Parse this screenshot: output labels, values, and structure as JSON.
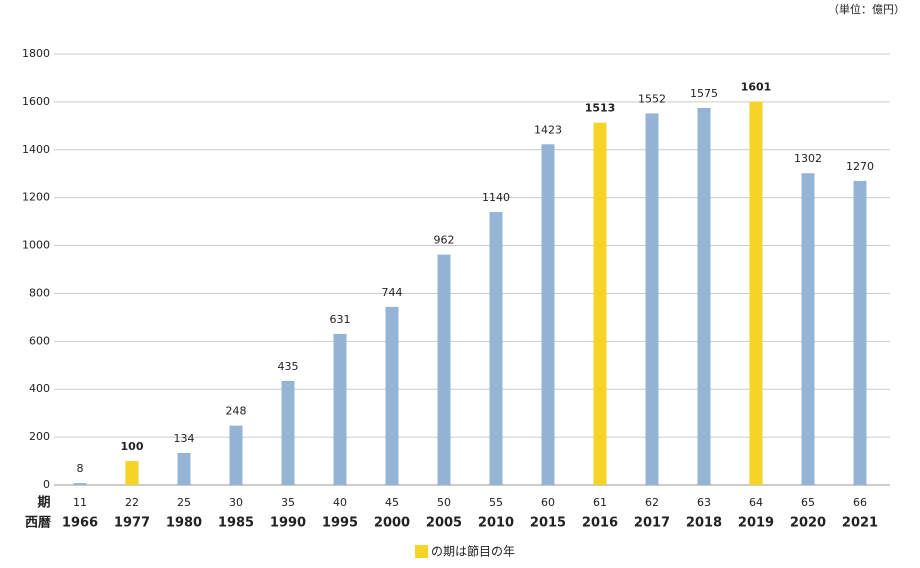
{
  "chart_data": {
    "type": "bar",
    "unit": "（単位：億円）",
    "period_header": "期",
    "year_header": "西暦",
    "periods": [
      "11",
      "22",
      "25",
      "30",
      "35",
      "40",
      "45",
      "50",
      "55",
      "60",
      "61",
      "62",
      "63",
      "64",
      "65",
      "66"
    ],
    "categories": [
      "1966",
      "1977",
      "1980",
      "1985",
      "1990",
      "1995",
      "2000",
      "2005",
      "2010",
      "2015",
      "2016",
      "2017",
      "2018",
      "2019",
      "2020",
      "2021"
    ],
    "values": [
      8,
      100,
      134,
      248,
      435,
      631,
      744,
      962,
      1140,
      1423,
      1513,
      1552,
      1575,
      1601,
      1302,
      1270
    ],
    "colors": [
      "#95b3d7",
      "#f5d327",
      "#95b3d7",
      "#95b3d7",
      "#95b3d7",
      "#95b3d7",
      "#95b3d7",
      "#95b3d7",
      "#95b3d7",
      "#95b3d7",
      "#f5d327",
      "#95b3d7",
      "#95b3d7",
      "#f5d327",
      "#95b3d7",
      "#95b3d7"
    ],
    "legend": {
      "label": "の期は節目の年",
      "color": "#f5d327"
    },
    "ylim": [
      0,
      1800
    ],
    "yticks": [
      0,
      200,
      400,
      600,
      800,
      1000,
      1200,
      1400,
      1600,
      1800
    ],
    "grid": true
  }
}
